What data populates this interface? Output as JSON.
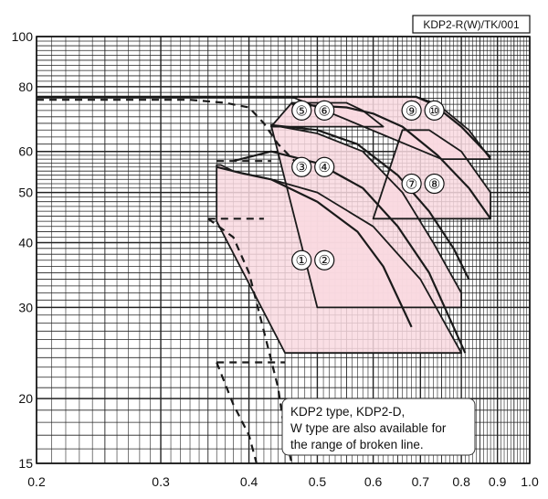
{
  "chart_data": {
    "type": "line",
    "title": "",
    "xlabel": "",
    "ylabel": "",
    "x_scale": "log",
    "y_scale": "log",
    "xlim": [
      0.2,
      1.0
    ],
    "ylim": [
      15,
      100
    ],
    "x_ticks": [
      0.2,
      0.3,
      0.4,
      0.5,
      0.6,
      0.7,
      0.8,
      0.9,
      1.0
    ],
    "x_tick_labels": [
      "0.2",
      "0.3",
      "0.4",
      "0.5",
      "0.6",
      "0.7",
      "0.8",
      "0.9",
      "1.0"
    ],
    "y_ticks": [
      15,
      20,
      30,
      40,
      50,
      60,
      80,
      100
    ],
    "y_tick_labels": [
      "15",
      "20",
      "30",
      "40",
      "50",
      "60",
      "80",
      "100"
    ],
    "grid": true,
    "region_fill": "#f9d9e1",
    "line_color": "#1a1a1a",
    "code_label": "KDP2-R(W)/TK/001",
    "note": {
      "lines": [
        "KDP2 type, KDP2-D,",
        "W type are also available for",
        "the range of broken line."
      ]
    },
    "regions": [
      {
        "label": "①②",
        "label_at": [
          0.475,
          37
        ],
        "boundary": [
          [
            0.36,
            44
          ],
          [
            0.45,
            24.5
          ],
          [
            0.8,
            24.5
          ],
          [
            0.7,
            34
          ],
          [
            0.6,
            43
          ],
          [
            0.5,
            50
          ],
          [
            0.43,
            53
          ],
          [
            0.38,
            55
          ],
          [
            0.365,
            56.5
          ],
          [
            0.36,
            56.5
          ]
        ]
      },
      {
        "label": "③④",
        "label_at": [
          0.475,
          56
        ],
        "boundary": [
          [
            0.43,
            67.5
          ],
          [
            0.5,
            65
          ],
          [
            0.58,
            60
          ],
          [
            0.66,
            50
          ],
          [
            0.73,
            40
          ],
          [
            0.8,
            32
          ],
          [
            0.8,
            30
          ],
          [
            0.65,
            30
          ],
          [
            0.5,
            30
          ]
        ]
      },
      {
        "label": "⑤⑥",
        "label_at": [
          0.475,
          72
        ],
        "boundary": [
          [
            0.43,
            67
          ],
          [
            0.46,
            74.5
          ],
          [
            0.55,
            74.5
          ],
          [
            0.58,
            72
          ],
          [
            0.62,
            67
          ],
          [
            0.62,
            67
          ]
        ]
      },
      {
        "label": "⑦⑧",
        "label_at": [
          0.68,
          52
        ],
        "boundary": [
          [
            0.6,
            44.5
          ],
          [
            0.88,
            44.5
          ],
          [
            0.88,
            50
          ],
          [
            0.8,
            60
          ],
          [
            0.72,
            66
          ],
          [
            0.66,
            66
          ]
        ]
      },
      {
        "label": "⑨⑩",
        "label_at": [
          0.68,
          72
        ],
        "boundary": [
          [
            0.46,
            76.5
          ],
          [
            0.69,
            76.5
          ],
          [
            0.74,
            74
          ],
          [
            0.82,
            66
          ],
          [
            0.88,
            58
          ],
          [
            0.88,
            58
          ],
          [
            0.75,
            58
          ]
        ]
      }
    ],
    "solid_curves": [
      {
        "name": "①②",
        "points": [
          [
            0.36,
            56
          ],
          [
            0.39,
            54.5
          ],
          [
            0.43,
            53
          ],
          [
            0.5,
            48
          ],
          [
            0.57,
            42
          ],
          [
            0.62,
            36
          ],
          [
            0.66,
            30
          ],
          [
            0.68,
            27.5
          ]
        ]
      },
      {
        "name": "③④",
        "points": [
          [
            0.38,
            57.5
          ],
          [
            0.43,
            60
          ],
          [
            0.5,
            57
          ],
          [
            0.58,
            51
          ],
          [
            0.65,
            43
          ],
          [
            0.72,
            35
          ],
          [
            0.78,
            27.5
          ],
          [
            0.81,
            24.5
          ]
        ]
      },
      {
        "name": "⑤⑥",
        "points": [
          [
            0.43,
            67.5
          ],
          [
            0.5,
            66
          ],
          [
            0.57,
            62
          ],
          [
            0.65,
            54
          ],
          [
            0.72,
            46
          ],
          [
            0.78,
            39
          ],
          [
            0.82,
            34
          ]
        ]
      },
      {
        "name": "⑦⑧",
        "points": [
          [
            0.46,
            74
          ],
          [
            0.55,
            73
          ],
          [
            0.6,
            71
          ],
          [
            0.66,
            67
          ],
          [
            0.74,
            59
          ],
          [
            0.82,
            51
          ],
          [
            0.88,
            44.5
          ]
        ]
      },
      {
        "name": "⑨⑩",
        "points": [
          [
            0.2,
            76.5
          ],
          [
            0.55,
            76.5
          ],
          [
            0.69,
            76.5
          ],
          [
            0.73,
            74
          ],
          [
            0.8,
            67
          ],
          [
            0.88,
            58.5
          ]
        ]
      }
    ],
    "dashed_curves": [
      {
        "points": [
          [
            0.2,
            75.5
          ],
          [
            0.33,
            75.5
          ],
          [
            0.37,
            74.5
          ],
          [
            0.4,
            73
          ],
          [
            0.42,
            68
          ],
          [
            0.44,
            62
          ],
          [
            0.47,
            56.5
          ]
        ]
      },
      {
        "points": [
          [
            0.36,
            57.5
          ],
          [
            0.41,
            57.5
          ],
          [
            0.43,
            57.5
          ]
        ]
      },
      {
        "points": [
          [
            0.35,
            44.5
          ],
          [
            0.38,
            41
          ],
          [
            0.4,
            35
          ],
          [
            0.42,
            27
          ],
          [
            0.44,
            21
          ],
          [
            0.45,
            17
          ],
          [
            0.46,
            15
          ]
        ]
      },
      {
        "points": [
          [
            0.35,
            44.5
          ],
          [
            0.42,
            44.5
          ]
        ]
      },
      {
        "points": [
          [
            0.36,
            23.5
          ],
          [
            0.45,
            23.5
          ]
        ]
      },
      {
        "points": [
          [
            0.36,
            23.5
          ],
          [
            0.38,
            19.5
          ],
          [
            0.4,
            17
          ],
          [
            0.41,
            15
          ]
        ]
      }
    ]
  }
}
